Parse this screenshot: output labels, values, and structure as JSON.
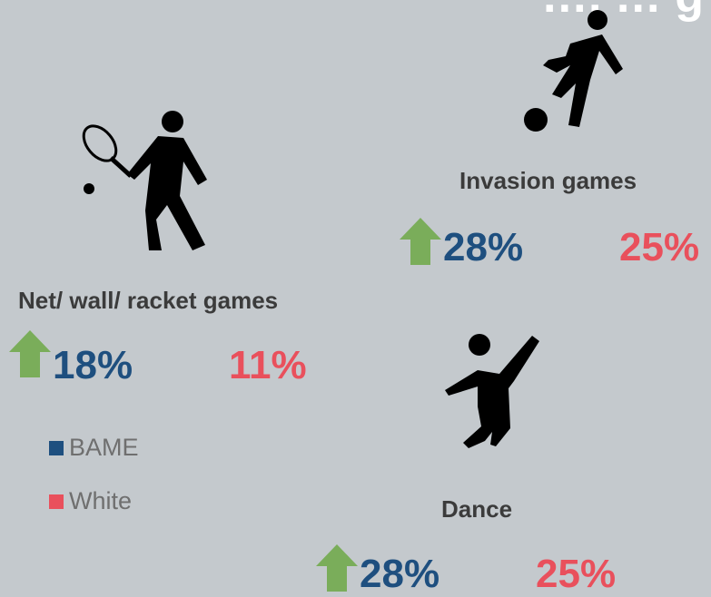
{
  "title_fragment": "…, … g",
  "colors": {
    "bame": "#1e4f7f",
    "white": "#e9505c",
    "arrow": "#7aad5a",
    "background": "#c4c9cd"
  },
  "sports": [
    {
      "name": "Invasion games",
      "icon": "football-player-icon",
      "bame_pct": "28%",
      "white_pct": "25%",
      "trend": "up"
    },
    {
      "name": "Net/ wall/ racket games",
      "icon": "tennis-player-icon",
      "bame_pct": "18%",
      "white_pct": "11%",
      "trend": "up"
    },
    {
      "name": "Dance",
      "icon": "dancer-icon",
      "bame_pct": "28%",
      "white_pct": "25%",
      "trend": "up"
    }
  ],
  "legend": [
    {
      "label": "BAME",
      "color": "#1e4f7f"
    },
    {
      "label": "White",
      "color": "#e9505c"
    }
  ]
}
